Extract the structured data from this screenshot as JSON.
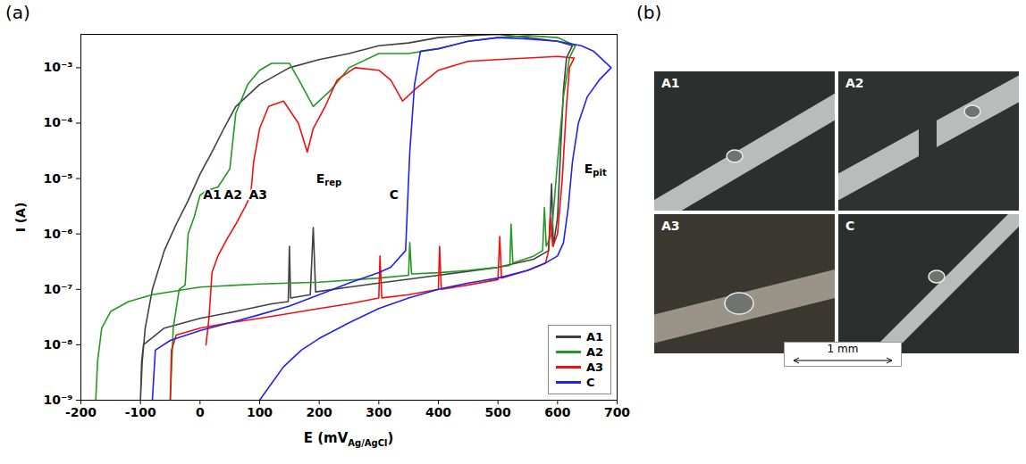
{
  "chart_data": {
    "type": "line",
    "x_label": {
      "text": "E (mV",
      "subscript": "Ag/AgCl",
      "after": ")"
    },
    "y_label": "I (A)",
    "log": "y",
    "grid": false,
    "legend": "lower right",
    "xlim": [
      -200,
      700
    ],
    "xticks": [
      -200,
      -100,
      0,
      100,
      200,
      300,
      400,
      500,
      600,
      700
    ],
    "ylim": [
      1e-09,
      0.004
    ],
    "yticks": [
      {
        "value": 1e-09,
        "label": "10⁻⁹"
      },
      {
        "value": 1e-08,
        "label": "10⁻⁸"
      },
      {
        "value": 1e-07,
        "label": "10⁻⁷"
      },
      {
        "value": 1e-06,
        "label": "10⁻⁶"
      },
      {
        "value": 1e-05,
        "label": "10⁻⁵"
      },
      {
        "value": 0.0001,
        "label": "10⁻⁴"
      },
      {
        "value": 0.001,
        "label": "10⁻³"
      }
    ],
    "series": [
      {
        "name": "A1",
        "color": "#404040",
        "x": [
          -100,
          -98,
          -95,
          -60,
          0,
          60,
          120,
          148,
          150,
          152,
          185,
          190,
          194,
          250,
          300,
          400,
          500,
          560,
          585,
          590,
          593,
          600,
          605,
          610,
          615,
          625,
          600,
          550,
          500,
          450,
          400,
          350,
          300,
          250,
          200,
          150,
          100,
          60,
          40,
          20,
          0,
          -20,
          -40,
          -60,
          -80,
          -92,
          -97,
          -100
        ],
        "values": [
          1e-09,
          5e-09,
          1e-08,
          2e-08,
          3e-08,
          4e-08,
          5.5e-08,
          6e-08,
          6e-07,
          7e-08,
          8e-08,
          1.3e-06,
          9e-08,
          1.1e-07,
          1.3e-07,
          1.8e-07,
          2.5e-07,
          3.5e-07,
          5e-07,
          8e-06,
          6e-07,
          2e-06,
          3e-05,
          0.0004,
          0.0015,
          0.0025,
          0.003,
          0.0035,
          0.004,
          0.0038,
          0.0035,
          0.0028,
          0.0025,
          0.0018,
          0.0014,
          0.001,
          0.0005,
          0.0002,
          8e-05,
          3e-05,
          1.2e-05,
          4e-06,
          1.5e-06,
          5e-07,
          1e-07,
          2e-08,
          5e-09,
          1e-09
        ]
      },
      {
        "name": "A2",
        "color": "#229922",
        "x": [
          -175,
          -172,
          -165,
          -150,
          -120,
          -80,
          0,
          100,
          200,
          300,
          350,
          352,
          355,
          400,
          450,
          500,
          520,
          522,
          525,
          560,
          575,
          578,
          581,
          590,
          600,
          610,
          620,
          630,
          600,
          550,
          500,
          450,
          400,
          350,
          300,
          250,
          220,
          190,
          170,
          150,
          120,
          100,
          80,
          60,
          50,
          30,
          10,
          0,
          -10,
          -20,
          -25,
          -35,
          -45,
          -50
        ],
        "values": [
          1e-09,
          5e-09,
          2e-08,
          4e-08,
          6e-08,
          8e-08,
          1.1e-07,
          1.25e-07,
          1.35e-07,
          1.6e-07,
          1.8e-07,
          7e-07,
          1.9e-07,
          2e-07,
          2.2e-07,
          2.5e-07,
          2.7e-07,
          1.5e-06,
          3e-07,
          4e-07,
          5e-07,
          3e-06,
          6e-07,
          1e-06,
          2e-05,
          0.0003,
          0.0015,
          0.0025,
          0.0035,
          0.0038,
          0.0035,
          0.003,
          0.0022,
          0.0018,
          0.0018,
          0.001,
          0.0004,
          0.0002,
          0.0005,
          0.0012,
          0.0012,
          0.0009,
          0.0005,
          0.00015,
          1.5e-05,
          7e-06,
          6e-06,
          5e-06,
          2e-06,
          1e-06,
          1.2e-07,
          1e-07,
          2e-08,
          1e-09
        ]
      },
      {
        "name": "A3",
        "color": "#ee1111",
        "x": [
          -50,
          -48,
          -40,
          0,
          50,
          100,
          200,
          250,
          300,
          302,
          305,
          350,
          400,
          402,
          405,
          450,
          500,
          503,
          506,
          550,
          580,
          585,
          588,
          592,
          600,
          608,
          615,
          620,
          628,
          600,
          550,
          500,
          450,
          400,
          360,
          340,
          320,
          300,
          260,
          230,
          210,
          190,
          180,
          165,
          140,
          115,
          100,
          90,
          85,
          75,
          60,
          45,
          30,
          20,
          15,
          10
        ],
        "values": [
          1e-09,
          8e-09,
          1.5e-08,
          2e-08,
          2.5e-08,
          3e-08,
          4.5e-08,
          5.5e-08,
          7e-08,
          4e-07,
          7e-08,
          8e-08,
          1e-07,
          6e-07,
          1e-07,
          1.2e-07,
          1.5e-07,
          9e-07,
          1.6e-07,
          2.2e-07,
          3e-07,
          5e-07,
          2e-06,
          6e-07,
          1e-06,
          1e-05,
          0.0002,
          0.001,
          0.0015,
          0.0016,
          0.0015,
          0.0014,
          0.0013,
          0.0009,
          0.0004,
          0.00025,
          0.0006,
          0.0009,
          0.001,
          0.0006,
          0.0002,
          8e-05,
          3e-05,
          0.0001,
          0.00025,
          0.0002,
          8e-05,
          2e-05,
          5e-06,
          3e-06,
          1.5e-06,
          8e-07,
          4e-07,
          2e-07,
          3e-08,
          1e-08
        ]
      },
      {
        "name": "C",
        "color": "#2222ee",
        "x": [
          100,
          120,
          140,
          170,
          200,
          250,
          300,
          350,
          400,
          450,
          500,
          550,
          580,
          600,
          610,
          618,
          625,
          635,
          650,
          670,
          690,
          660,
          640,
          600,
          550,
          500,
          450,
          400,
          370,
          360,
          352,
          348,
          345,
          320,
          300,
          250,
          200,
          150,
          100,
          50,
          0,
          -50,
          -75,
          -80
        ],
        "values": [
          1e-09,
          2e-09,
          4e-09,
          8e-09,
          1.3e-08,
          2.5e-08,
          4.5e-08,
          7e-08,
          1e-07,
          1.3e-07,
          1.6e-07,
          2.2e-07,
          3e-07,
          4e-07,
          7e-07,
          3e-06,
          2e-05,
          0.0001,
          0.0003,
          0.0006,
          0.001,
          0.002,
          0.0025,
          0.003,
          0.0033,
          0.0035,
          0.003,
          0.0022,
          0.002,
          0.0005,
          3e-05,
          3e-06,
          5e-07,
          2.5e-07,
          2e-07,
          1.3e-07,
          8e-08,
          5e-08,
          3.5e-08,
          2.5e-08,
          1.8e-08,
          1.2e-08,
          8e-09,
          1e-09
        ]
      }
    ],
    "annotations": [
      {
        "text": "E",
        "subscript": "rep",
        "x": 195,
        "y": 1e-05
      },
      {
        "text": "E",
        "subscript": "pit",
        "x": 645,
        "y": 1.5e-05
      },
      {
        "text": "A1",
        "x": 5,
        "y": 5e-06
      },
      {
        "text": "A2",
        "x": 40,
        "y": 5e-06
      },
      {
        "text": "A3",
        "x": 82,
        "y": 5e-06
      },
      {
        "text": "C",
        "x": 318,
        "y": 5e-06
      }
    ]
  },
  "panel_labels": [
    "(a)",
    "(b)"
  ],
  "images": {
    "tiles": [
      "A1",
      "A2",
      "A3",
      "C"
    ],
    "scale_bar": "1 mm"
  }
}
